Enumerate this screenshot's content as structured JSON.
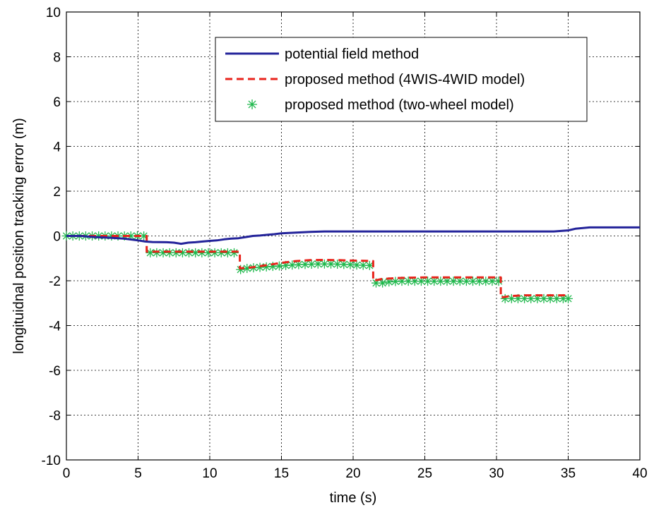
{
  "chart_data": {
    "type": "line",
    "xlabel": "time (s)",
    "ylabel": "longituidnal position tracking error (m)",
    "xlim": [
      0,
      40
    ],
    "ylim": [
      -10,
      10
    ],
    "xticks": [
      0,
      5,
      10,
      15,
      20,
      25,
      30,
      35,
      40
    ],
    "yticks": [
      10,
      8,
      6,
      4,
      2,
      0,
      -2,
      -4,
      -6,
      -8,
      -10
    ],
    "xtick_labels": [
      "0",
      "5",
      "10",
      "15",
      "20",
      "25",
      "30",
      "35",
      "40"
    ],
    "ytick_labels": [
      "10",
      "8",
      "6",
      "4",
      "2",
      "0",
      "-2",
      "-4",
      "-6",
      "-8",
      "-10"
    ],
    "grid": true,
    "legend_position": "top-right",
    "series": [
      {
        "name": "potential field method",
        "color": "#23239a",
        "style": "solid",
        "x": [
          0,
          1,
          2,
          3,
          4,
          5,
          5.5,
          6,
          7,
          7.5,
          8,
          8.5,
          9,
          9.5,
          10,
          10.5,
          11,
          11.5,
          12,
          12.5,
          13,
          13.5,
          14,
          14.5,
          15,
          16,
          17,
          18,
          20,
          25,
          30,
          34,
          35,
          35.5,
          36.5,
          40
        ],
        "y": [
          0,
          0,
          -0.05,
          -0.08,
          -0.12,
          -0.2,
          -0.25,
          -0.27,
          -0.28,
          -0.3,
          -0.35,
          -0.3,
          -0.28,
          -0.25,
          -0.22,
          -0.2,
          -0.15,
          -0.12,
          -0.1,
          -0.05,
          0,
          0.02,
          0.05,
          0.08,
          0.12,
          0.15,
          0.18,
          0.2,
          0.2,
          0.2,
          0.2,
          0.2,
          0.25,
          0.32,
          0.38,
          0.38
        ]
      },
      {
        "name": "proposed method (4WIS-4WID model)",
        "color": "#e8231b",
        "style": "dashed",
        "x": [
          0,
          5.6,
          5.6,
          12.1,
          12.1,
          13,
          14,
          15,
          16,
          17,
          18,
          19,
          20,
          21.4,
          21.4,
          22,
          23,
          24,
          25,
          26,
          27,
          28,
          29,
          30.3,
          30.3,
          31,
          32,
          33,
          34,
          35
        ],
        "y": [
          0,
          0,
          -0.7,
          -0.7,
          -1.45,
          -1.4,
          -1.3,
          -1.2,
          -1.12,
          -1.08,
          -1.07,
          -1.08,
          -1.1,
          -1.12,
          -2.0,
          -1.92,
          -1.88,
          -1.86,
          -1.85,
          -1.85,
          -1.85,
          -1.85,
          -1.85,
          -1.85,
          -2.75,
          -2.68,
          -2.65,
          -2.65,
          -2.65,
          -2.65
        ]
      },
      {
        "name": "proposed method (two-wheel model)",
        "color": "#1fb84c",
        "style": "markers",
        "x": [
          0,
          0.45,
          0.9,
          1.35,
          1.8,
          2.25,
          2.7,
          3.15,
          3.6,
          4.05,
          4.5,
          4.95,
          5.4,
          5.85,
          6.3,
          6.75,
          7.2,
          7.65,
          8.1,
          8.55,
          9.0,
          9.45,
          9.9,
          10.35,
          10.8,
          11.25,
          11.7,
          12.15,
          12.6,
          13.05,
          13.5,
          13.95,
          14.4,
          14.85,
          15.3,
          15.75,
          16.2,
          16.65,
          17.1,
          17.55,
          18.0,
          18.45,
          18.9,
          19.35,
          19.8,
          20.25,
          20.7,
          21.15,
          21.6,
          22.05,
          22.5,
          22.95,
          23.4,
          23.85,
          24.3,
          24.75,
          25.2,
          25.65,
          26.1,
          26.55,
          27.0,
          27.45,
          27.9,
          28.35,
          28.8,
          29.25,
          29.7,
          30.15,
          30.6,
          31.05,
          31.5,
          31.95,
          32.4,
          32.85,
          33.3,
          33.75,
          34.2,
          34.65,
          35.0
        ],
        "y": [
          0,
          0,
          0,
          0,
          0,
          0,
          0,
          0,
          0,
          0,
          0,
          0,
          0,
          -0.75,
          -0.75,
          -0.75,
          -0.75,
          -0.75,
          -0.75,
          -0.75,
          -0.75,
          -0.75,
          -0.75,
          -0.75,
          -0.75,
          -0.75,
          -0.75,
          -1.5,
          -1.45,
          -1.42,
          -1.4,
          -1.38,
          -1.36,
          -1.34,
          -1.32,
          -1.3,
          -1.28,
          -1.27,
          -1.26,
          -1.25,
          -1.25,
          -1.25,
          -1.26,
          -1.27,
          -1.28,
          -1.3,
          -1.31,
          -1.32,
          -2.1,
          -2.1,
          -2.05,
          -2.03,
          -2.02,
          -2.02,
          -2.02,
          -2.02,
          -2.02,
          -2.02,
          -2.02,
          -2.02,
          -2.02,
          -2.02,
          -2.02,
          -2.02,
          -2.02,
          -2.02,
          -2.02,
          -2.02,
          -2.8,
          -2.8,
          -2.8,
          -2.8,
          -2.8,
          -2.8,
          -2.8,
          -2.8,
          -2.8,
          -2.8,
          -2.8
        ]
      }
    ]
  }
}
